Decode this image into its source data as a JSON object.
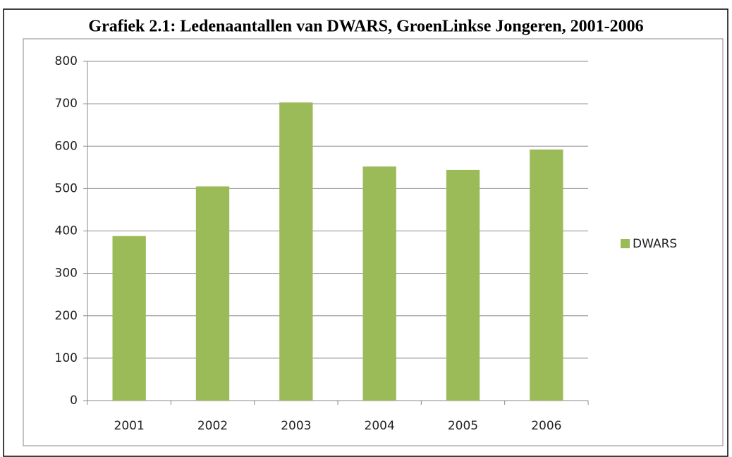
{
  "chart_data": {
    "type": "bar",
    "title": "Grafiek 2.1: Ledenaantallen van DWARS, GroenLinkse Jongeren, 2001-2006",
    "categories": [
      "2001",
      "2002",
      "2003",
      "2004",
      "2005",
      "2006"
    ],
    "series": [
      {
        "name": "DWARS",
        "color": "#9bbb59",
        "values": [
          388,
          505,
          703,
          552,
          544,
          592
        ]
      }
    ],
    "ylim": [
      0,
      800
    ],
    "yticks": [
      0,
      100,
      200,
      300,
      400,
      500,
      600,
      700,
      800
    ],
    "grid": true,
    "legend": "right"
  }
}
